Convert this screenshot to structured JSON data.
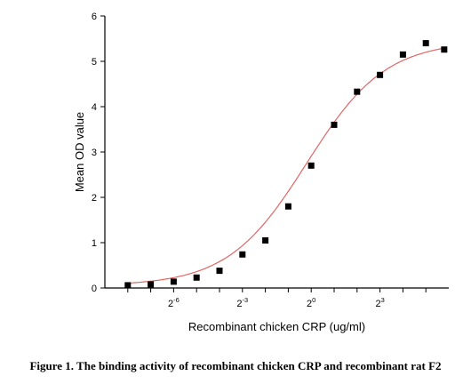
{
  "caption": "Figure 1. The binding activity of recombinant chicken CRP and recombinant rat F2",
  "chart_data": {
    "type": "scatter",
    "title": "",
    "xlabel": "Recombinant chicken CRP (ug/ml)",
    "ylabel": "Mean OD value",
    "x_scale": "log2",
    "x_tick_labels": [
      {
        "base": "2",
        "exp": "-6",
        "value": -6
      },
      {
        "base": "2",
        "exp": "-3",
        "value": -3
      },
      {
        "base": "2",
        "exp": "0",
        "value": 0
      },
      {
        "base": "2",
        "exp": "3",
        "value": 3
      }
    ],
    "x_exponents_min_max": [
      -9,
      6
    ],
    "ylim": [
      0,
      6
    ],
    "y_ticks": [
      0,
      1,
      2,
      3,
      4,
      5,
      6
    ],
    "grid": false,
    "series": [
      {
        "marker": "square",
        "color": "#000000",
        "log2_x": [
          -8,
          -7,
          -6,
          -5,
          -4,
          -3,
          -2,
          -1,
          0,
          1,
          2,
          3,
          4,
          5
        ],
        "values": [
          0.06,
          0.08,
          0.14,
          0.23,
          0.38,
          0.74,
          1.05,
          1.8,
          2.7,
          3.6,
          4.33,
          4.7,
          5.15,
          5.4
        ]
      }
    ],
    "extra_points": [
      {
        "log2_x": 5.8,
        "value": 5.26
      }
    ],
    "fit_curve": {
      "color": "#e06666",
      "model": "4PL",
      "bottom": 0.05,
      "top": 5.45,
      "log2_ec50": -0.2,
      "hill_slope": 0.42
    }
  }
}
